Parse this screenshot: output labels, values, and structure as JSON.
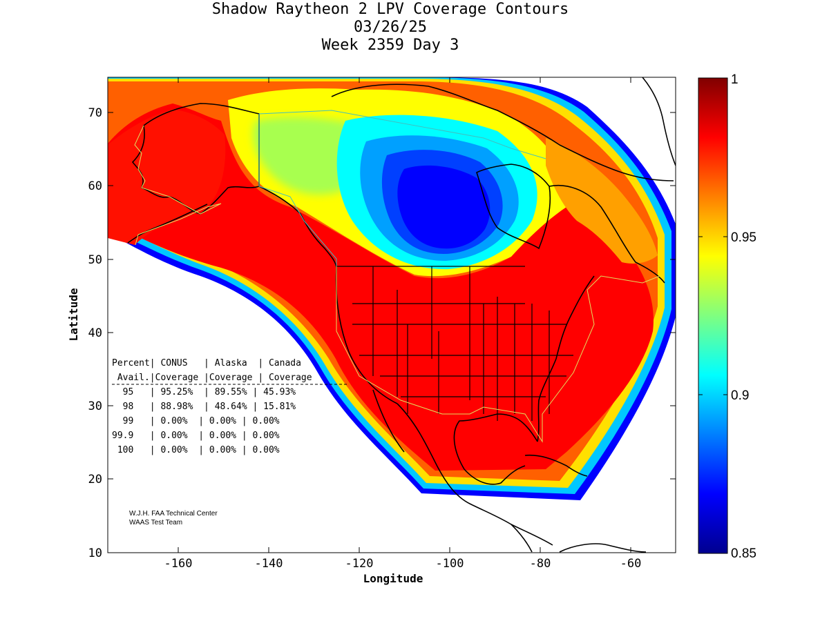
{
  "title": {
    "line1": "Shadow Raytheon 2 LPV Coverage Contours",
    "line2": "03/26/25",
    "line3": "Week 2359 Day 3"
  },
  "map": {
    "xlabel": "Longitude",
    "ylabel": "Latitude",
    "x_ticks": [
      "-160",
      "-140",
      "-120",
      "-100",
      "-80",
      "-60"
    ],
    "y_ticks": [
      "10",
      "20",
      "30",
      "40",
      "50",
      "60",
      "70"
    ],
    "xlim": [
      -175,
      -50
    ],
    "ylim": [
      10,
      75
    ]
  },
  "colorbar": {
    "range": [
      0.85,
      1
    ],
    "ticks": [
      "1",
      "0.95",
      "0.9",
      "0.85"
    ],
    "colormap": "jet"
  },
  "stats_table": {
    "lines": [
      "Percent| CONUS   | Alaska  | Canada",
      " Avail.|Coverage |Coverage | Coverage",
      "  95   | 95.25%  | 89.55% | 45.93%",
      "  98   | 88.98%  | 48.64% | 15.81%",
      "  99   | 0.00%  | 0.00% | 0.00%",
      "99.9   | 0.00%  | 0.00% | 0.00%",
      " 100   | 0.00%  | 0.00% | 0.00%"
    ]
  },
  "credit": {
    "line1": "W.J.H. FAA Technical Center",
    "line2": "WAAS Test Team"
  },
  "colors": {
    "red": "#ff0000",
    "dark_red": "#800000",
    "orange": "#ff8000",
    "yellow": "#ffff00",
    "cyan": "#00ffff",
    "blue": "#0000ff",
    "dark_blue": "#00008f"
  }
}
